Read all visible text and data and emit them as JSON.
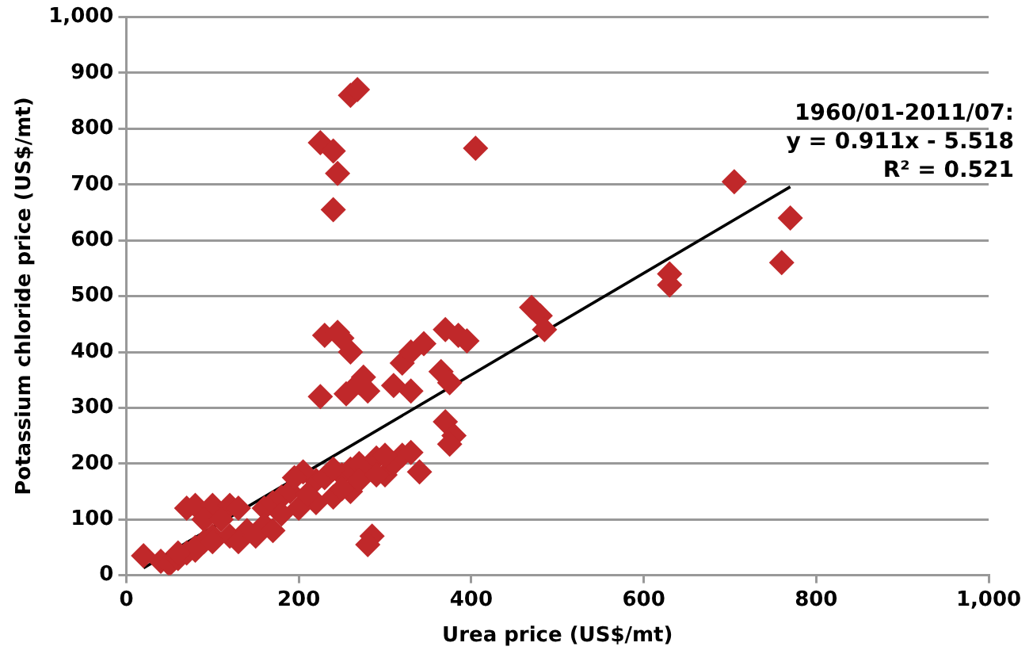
{
  "chart_data": {
    "type": "scatter",
    "xlabel": "Urea price (US$/mt)",
    "ylabel": "Potassium chloride price (US$/mt)",
    "xlim": [
      0,
      1000
    ],
    "ylim": [
      0,
      1000
    ],
    "xticks": [
      0,
      200,
      400,
      600,
      800,
      {
        "value": 1000,
        "label": "1,000"
      }
    ],
    "yticks": [
      0,
      100,
      200,
      300,
      400,
      500,
      600,
      700,
      800,
      900,
      {
        "value": 1000,
        "label": "1,000"
      }
    ],
    "grid": "y",
    "marker": "diamond",
    "annotations": [
      "1960/01-2011/07:\ny = 0.911x - 5.518\nR² = 0.521"
    ],
    "series": [
      {
        "type": "scatter",
        "color": "#c0282a",
        "x": [
          225,
          240,
          245,
          240,
          260,
          268,
          405,
          230,
          245,
          250,
          260,
          225,
          255,
          270,
          275,
          280,
          320,
          330,
          345,
          310,
          330,
          370,
          385,
          395,
          365,
          375,
          370,
          380,
          375,
          285,
          280,
          470,
          480,
          485,
          630,
          630,
          705,
          760,
          770,
          20,
          40,
          50,
          60,
          70,
          80,
          90,
          100,
          160,
          170,
          180,
          190,
          220,
          230,
          250,
          260,
          270,
          280,
          290,
          300,
          310,
          320,
          330,
          340,
          300,
          260,
          240,
          220,
          200,
          180,
          160,
          140,
          120,
          100,
          80,
          60,
          70,
          80,
          100,
          120,
          130,
          90,
          110,
          130,
          150,
          170,
          210,
          250,
          270,
          290,
          240,
          205,
          195
        ],
        "values": [
          775,
          760,
          720,
          655,
          860,
          870,
          765,
          430,
          435,
          425,
          400,
          320,
          325,
          345,
          355,
          330,
          380,
          400,
          415,
          340,
          330,
          440,
          430,
          420,
          365,
          345,
          275,
          250,
          235,
          70,
          55,
          480,
          465,
          440,
          540,
          520,
          705,
          560,
          640,
          35,
          25,
          20,
          30,
          40,
          50,
          60,
          70,
          120,
          130,
          140,
          150,
          170,
          175,
          180,
          190,
          200,
          190,
          210,
          180,
          200,
          215,
          220,
          185,
          215,
          150,
          140,
          130,
          120,
          110,
          90,
          80,
          70,
          60,
          45,
          40,
          120,
          125,
          125,
          125,
          120,
          100,
          100,
          60,
          70,
          80,
          145,
          155,
          170,
          180,
          190,
          185,
          175
        ]
      },
      {
        "type": "line",
        "color": "#000000",
        "marker": "none",
        "x": [
          20,
          770
        ],
        "values": [
          13,
          696
        ]
      }
    ]
  }
}
